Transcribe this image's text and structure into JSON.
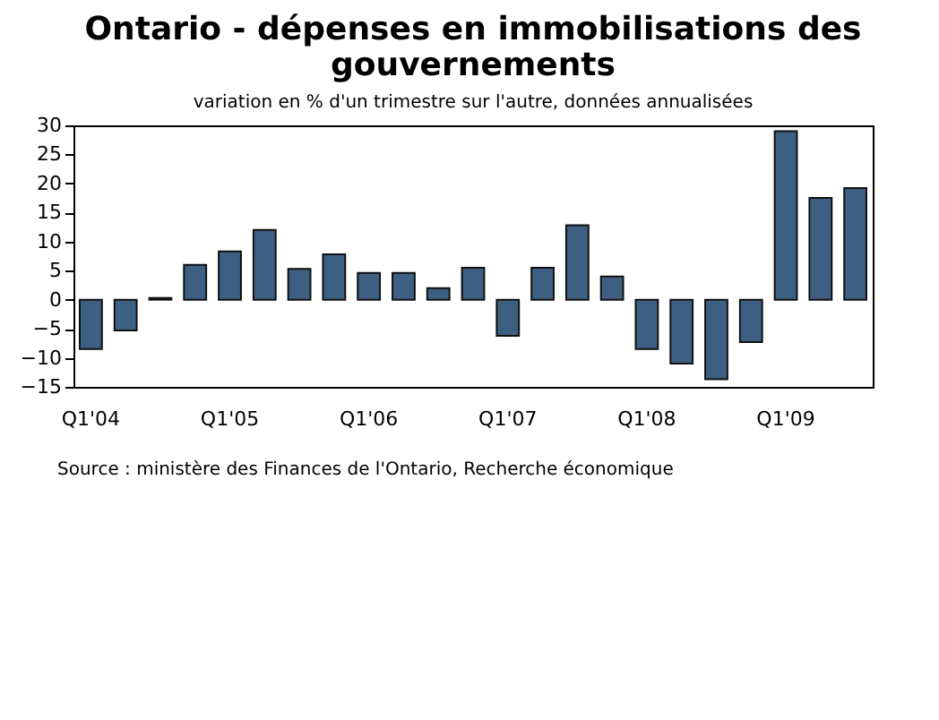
{
  "chart_data": {
    "type": "bar",
    "title": "Ontario - dépenses en immobilisations des gouvernements",
    "subtitle": "variation en % d'un trimestre sur l'autre, données annualisées",
    "categories": [
      "Q1'04",
      null,
      null,
      null,
      "Q1'05",
      null,
      null,
      null,
      "Q1'06",
      null,
      null,
      null,
      "Q1'07",
      null,
      null,
      null,
      "Q1'08",
      null,
      null,
      null,
      "Q1'09",
      null,
      null
    ],
    "values": [
      -8.5,
      -5.3,
      0.3,
      6,
      8.3,
      12,
      5.3,
      7.8,
      4.6,
      4.6,
      2,
      5.5,
      -6.2,
      5.5,
      12.8,
      4,
      -8.5,
      -11,
      -13.7,
      -7.3,
      29,
      17.5,
      19.2
    ],
    "color": "#3d5f82",
    "ylim": [
      -15,
      30
    ],
    "yticks": [
      -15,
      -10,
      -5,
      0,
      5,
      10,
      15,
      20,
      25,
      30
    ],
    "annotations": [
      "Source : ministère des Finances de l'Ontario,  Recherche économique"
    ]
  }
}
